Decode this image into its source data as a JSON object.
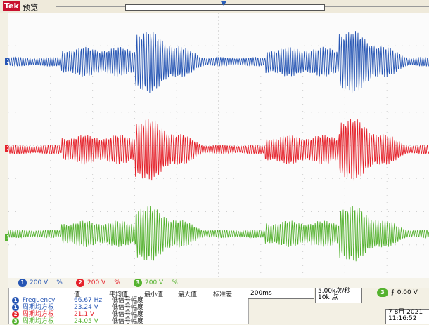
{
  "topbar": {
    "brand": "Tek",
    "preview_label": "预览"
  },
  "channels": [
    {
      "id": "1",
      "color": "#2756b4",
      "light": "#4b78c8",
      "scale": "200 V"
    },
    {
      "id": "2",
      "color": "#e5212a",
      "light": "#ef5a60",
      "scale": "200 V"
    },
    {
      "id": "3",
      "color": "#55b22f",
      "light": "#86cc60",
      "scale": "200 V"
    }
  ],
  "channel_bar": {
    "bw_symbol": "%"
  },
  "measurements": {
    "headers": [
      "值",
      "平均值",
      "最小值",
      "最大值",
      "标准差"
    ],
    "rows": [
      {
        "ch": "1",
        "name": "Frequency",
        "value": "66.67 Hz",
        "avg": "低信号幅度"
      },
      {
        "ch": "1",
        "name": "周期均方根",
        "value": "23.24 V",
        "avg": "低信号幅度"
      },
      {
        "ch": "2",
        "name": "周期均方根",
        "value": "21.1 V",
        "avg": "低信号幅度"
      },
      {
        "ch": "3",
        "name": "周期均方根",
        "value": "24.05 V",
        "avg": "低信号幅度"
      }
    ]
  },
  "timebase": {
    "scale": "200ms",
    "rate": "5.00k次/秒",
    "points": "10k 点"
  },
  "trigger": {
    "ch": "3",
    "slope": "⨍",
    "level": "0.00 V"
  },
  "datetime": {
    "date": "7 8月 2021",
    "time": "11:16:52"
  }
}
